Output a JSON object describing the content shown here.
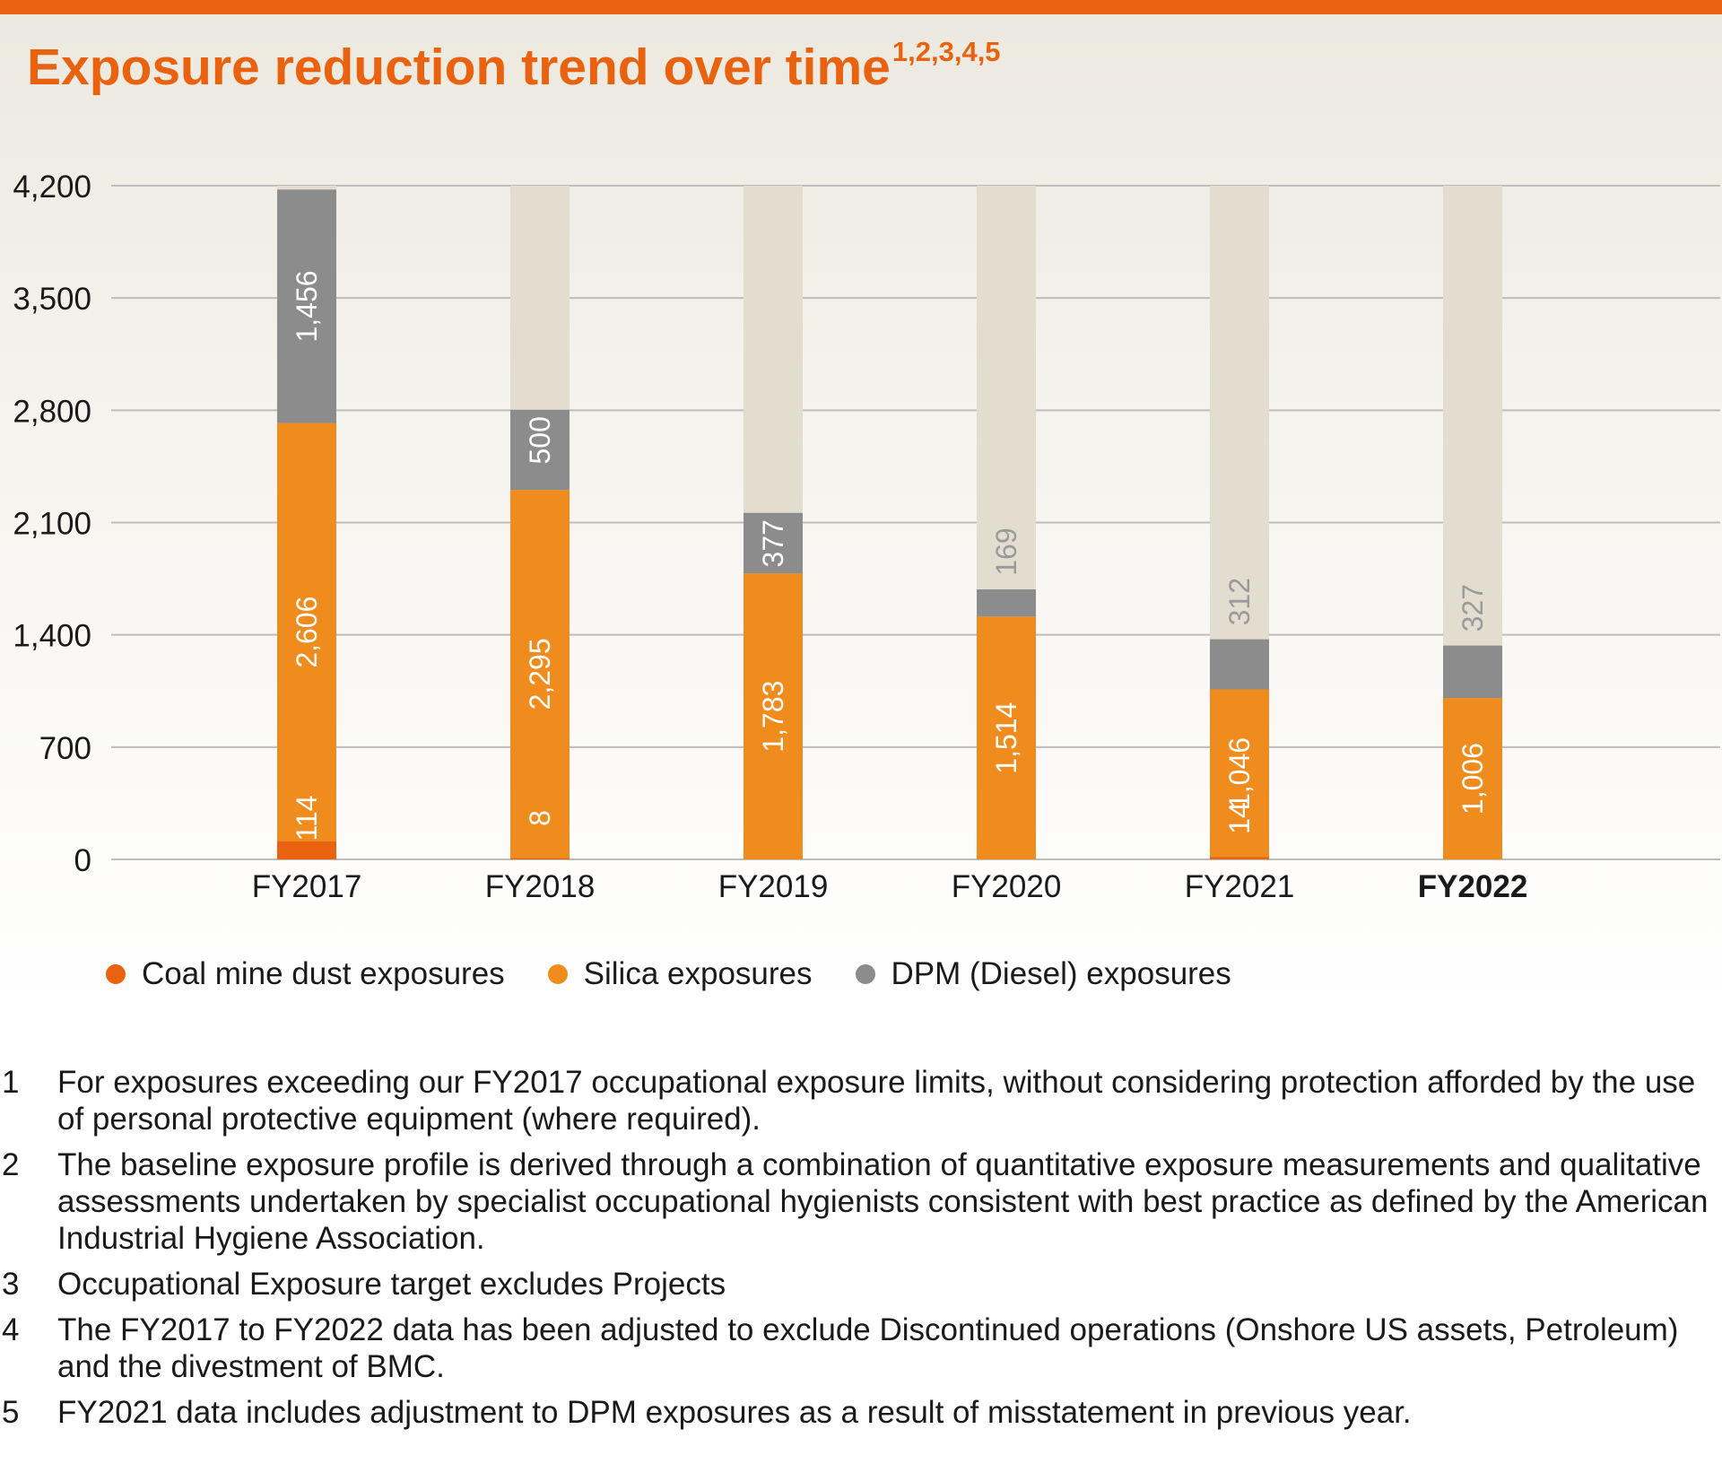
{
  "title": "Exposure reduction trend over time",
  "title_superscript": "1,2,3,4,5",
  "colors": {
    "accent": "#e8620f",
    "coal": "#e8620f",
    "silica": "#f08c1e",
    "dpm": "#8c8c8c",
    "background_bar": "#e3ddd0",
    "gridline": "#bdbdbd"
  },
  "chart_data": {
    "type": "bar",
    "stacked": true,
    "categories": [
      "FY2017",
      "FY2018",
      "FY2019",
      "FY2020",
      "FY2021",
      "FY2022"
    ],
    "bold_categories": [
      "FY2022"
    ],
    "ylim": [
      0,
      4200
    ],
    "yticks": [
      0,
      700,
      1400,
      2100,
      2800,
      3500,
      4200
    ],
    "ytick_labels": [
      "0",
      "700",
      "1,400",
      "2,100",
      "2,800",
      "3,500",
      "4,200"
    ],
    "grid": true,
    "legend_position": "bottom-left",
    "series": [
      {
        "name": "Coal mine dust exposures",
        "values": [
          114,
          8,
          0,
          0,
          14,
          0
        ],
        "labels": [
          "114",
          "8",
          "",
          "",
          "14",
          ""
        ]
      },
      {
        "name": "Silica exposures",
        "values": [
          2606,
          2295,
          1783,
          1514,
          1046,
          1006
        ],
        "labels": [
          "2,606",
          "2,295",
          "1,783",
          "1,514",
          "1,046",
          "1,006"
        ]
      },
      {
        "name": "DPM (Diesel) exposures",
        "values": [
          1456,
          500,
          377,
          169,
          312,
          327
        ],
        "labels": [
          "1,456",
          "500",
          "377",
          "169",
          "312",
          "327"
        ]
      }
    ]
  },
  "footnotes": [
    {
      "num": "1",
      "text": "For exposures exceeding our FY2017 occupational exposure limits, without considering protection afforded by the use of personal protective equipment (where required)."
    },
    {
      "num": "2",
      "text": "The baseline exposure profile is derived through a combination of quantitative exposure measurements and qualitative assessments undertaken by specialist occupational hygienists consistent with best practice as defined by the American Industrial Hygiene Association."
    },
    {
      "num": "3",
      "text": "Occupational Exposure target excludes Projects"
    },
    {
      "num": "4",
      "text": "The FY2017 to FY2022 data has been adjusted to exclude Discontinued operations (Onshore US assets, Petroleum) and the divestment of BMC."
    },
    {
      "num": "5",
      "text": "FY2021 data includes adjustment to DPM exposures as a result of misstatement in previous year."
    }
  ]
}
